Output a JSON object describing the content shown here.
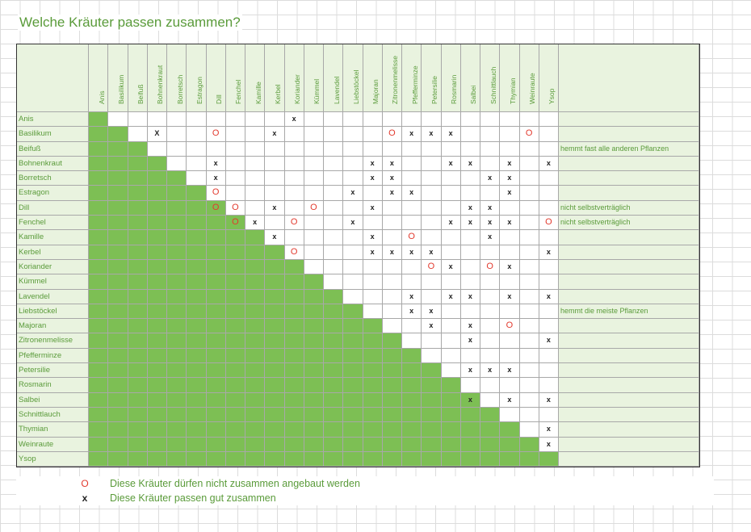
{
  "title": "Welche Kräuter passen zusammen?",
  "herbs": [
    "Anis",
    "Basilikum",
    "Beifuß",
    "Bohnenkraut",
    "Borretsch",
    "Estragon",
    "Dill",
    "Fenchel",
    "Kamille",
    "Kerbel",
    "Koriander",
    "Kümmel",
    "Lavendel",
    "Liebstöckel",
    "Majoran",
    "Zitronenmelisse",
    "Pfefferminze",
    "Petersilie",
    "Rosmarin",
    "Salbei",
    "Schnittlauch",
    "Thymian",
    "Weinraute",
    "Ysop"
  ],
  "marks": [
    {
      "row": 0,
      "col": 10,
      "sym": "x"
    },
    {
      "row": 1,
      "col": 3,
      "sym": "X"
    },
    {
      "row": 1,
      "col": 6,
      "sym": "O"
    },
    {
      "row": 1,
      "col": 9,
      "sym": "x"
    },
    {
      "row": 1,
      "col": 15,
      "sym": "O"
    },
    {
      "row": 1,
      "col": 16,
      "sym": "x"
    },
    {
      "row": 1,
      "col": 17,
      "sym": "x"
    },
    {
      "row": 1,
      "col": 18,
      "sym": "x"
    },
    {
      "row": 1,
      "col": 22,
      "sym": "O"
    },
    {
      "row": 3,
      "col": 6,
      "sym": "x"
    },
    {
      "row": 3,
      "col": 14,
      "sym": "x"
    },
    {
      "row": 3,
      "col": 15,
      "sym": "x"
    },
    {
      "row": 3,
      "col": 18,
      "sym": "x"
    },
    {
      "row": 3,
      "col": 19,
      "sym": "x"
    },
    {
      "row": 3,
      "col": 21,
      "sym": "x"
    },
    {
      "row": 3,
      "col": 23,
      "sym": "x"
    },
    {
      "row": 4,
      "col": 6,
      "sym": "x"
    },
    {
      "row": 4,
      "col": 14,
      "sym": "x"
    },
    {
      "row": 4,
      "col": 15,
      "sym": "x"
    },
    {
      "row": 4,
      "col": 20,
      "sym": "x"
    },
    {
      "row": 4,
      "col": 21,
      "sym": "x"
    },
    {
      "row": 5,
      "col": 6,
      "sym": "O"
    },
    {
      "row": 5,
      "col": 13,
      "sym": "x"
    },
    {
      "row": 5,
      "col": 15,
      "sym": "x"
    },
    {
      "row": 5,
      "col": 16,
      "sym": "x"
    },
    {
      "row": 5,
      "col": 21,
      "sym": "x"
    },
    {
      "row": 6,
      "col": 6,
      "sym": "O"
    },
    {
      "row": 6,
      "col": 7,
      "sym": "O"
    },
    {
      "row": 6,
      "col": 9,
      "sym": "x"
    },
    {
      "row": 6,
      "col": 11,
      "sym": "O"
    },
    {
      "row": 6,
      "col": 14,
      "sym": "x"
    },
    {
      "row": 6,
      "col": 19,
      "sym": "x"
    },
    {
      "row": 6,
      "col": 20,
      "sym": "x"
    },
    {
      "row": 7,
      "col": 7,
      "sym": "O"
    },
    {
      "row": 7,
      "col": 8,
      "sym": "x"
    },
    {
      "row": 7,
      "col": 10,
      "sym": "O"
    },
    {
      "row": 7,
      "col": 13,
      "sym": "x"
    },
    {
      "row": 7,
      "col": 18,
      "sym": "x"
    },
    {
      "row": 7,
      "col": 19,
      "sym": "x"
    },
    {
      "row": 7,
      "col": 20,
      "sym": "x"
    },
    {
      "row": 7,
      "col": 21,
      "sym": "x"
    },
    {
      "row": 7,
      "col": 23,
      "sym": "O"
    },
    {
      "row": 8,
      "col": 9,
      "sym": "x"
    },
    {
      "row": 8,
      "col": 14,
      "sym": "x"
    },
    {
      "row": 8,
      "col": 16,
      "sym": "O"
    },
    {
      "row": 8,
      "col": 20,
      "sym": "x"
    },
    {
      "row": 9,
      "col": 10,
      "sym": "O"
    },
    {
      "row": 9,
      "col": 14,
      "sym": "x"
    },
    {
      "row": 9,
      "col": 15,
      "sym": "x"
    },
    {
      "row": 9,
      "col": 16,
      "sym": "x"
    },
    {
      "row": 9,
      "col": 17,
      "sym": "x"
    },
    {
      "row": 9,
      "col": 23,
      "sym": "x"
    },
    {
      "row": 10,
      "col": 17,
      "sym": "O"
    },
    {
      "row": 10,
      "col": 18,
      "sym": "x"
    },
    {
      "row": 10,
      "col": 20,
      "sym": "O"
    },
    {
      "row": 10,
      "col": 21,
      "sym": "x"
    },
    {
      "row": 12,
      "col": 16,
      "sym": "x"
    },
    {
      "row": 12,
      "col": 18,
      "sym": "x"
    },
    {
      "row": 12,
      "col": 19,
      "sym": "x"
    },
    {
      "row": 12,
      "col": 21,
      "sym": "x"
    },
    {
      "row": 12,
      "col": 23,
      "sym": "x"
    },
    {
      "row": 13,
      "col": 16,
      "sym": "x"
    },
    {
      "row": 13,
      "col": 17,
      "sym": "x"
    },
    {
      "row": 14,
      "col": 17,
      "sym": "x"
    },
    {
      "row": 14,
      "col": 19,
      "sym": "x"
    },
    {
      "row": 14,
      "col": 21,
      "sym": "O"
    },
    {
      "row": 15,
      "col": 19,
      "sym": "x"
    },
    {
      "row": 15,
      "col": 23,
      "sym": "x"
    },
    {
      "row": 17,
      "col": 19,
      "sym": "x"
    },
    {
      "row": 17,
      "col": 20,
      "sym": "x"
    },
    {
      "row": 17,
      "col": 21,
      "sym": "x"
    },
    {
      "row": 19,
      "col": 19,
      "sym": "x"
    },
    {
      "row": 19,
      "col": 21,
      "sym": "x"
    },
    {
      "row": 19,
      "col": 23,
      "sym": "x"
    },
    {
      "row": 21,
      "col": 23,
      "sym": "x"
    },
    {
      "row": 22,
      "col": 23,
      "sym": "x"
    }
  ],
  "notes": [
    {
      "row": 2,
      "text": "hemmt fast alle anderen Pflanzen"
    },
    {
      "row": 6,
      "text": "nicht selbstverträglich"
    },
    {
      "row": 7,
      "text": "nicht selbstverträglich"
    },
    {
      "row": 13,
      "text": "hemmt die meiste Pflanzen"
    }
  ],
  "legend": [
    {
      "symbol": "O",
      "text": "Diese Kräuter dürfen nicht zusammen angebaut werden"
    },
    {
      "symbol": "x",
      "text": "Diese Kräuter passen gut zusammen"
    }
  ],
  "colors": {
    "green": "#7dbf54",
    "light_green": "#e9f3df",
    "text_green": "#5a9b3a",
    "incompatible_red": "#e23a2e"
  }
}
